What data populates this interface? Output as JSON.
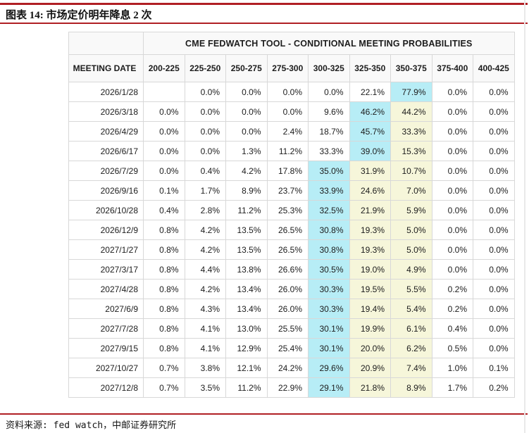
{
  "page": {
    "figure_title": "图表 14: 市场定价明年降息 2 次",
    "source_note": "资料来源: fed watch，中邮证券研究所"
  },
  "chart_data": {
    "type": "table",
    "title": "CME FEDWATCH TOOL - CONDITIONAL MEETING PROBABILITIES",
    "row_header": "MEETING DATE",
    "columns": [
      "200-225",
      "225-250",
      "250-275",
      "275-300",
      "300-325",
      "325-350",
      "350-375",
      "375-400",
      "400-425"
    ],
    "rows": [
      {
        "date": "2026/1/28",
        "values": [
          "",
          "0.0%",
          "0.0%",
          "0.0%",
          "0.0%",
          "22.1%",
          "77.9%",
          "0.0%",
          "0.0%"
        ],
        "highlights": [
          "",
          "",
          "",
          "",
          "",
          "",
          "c",
          "",
          ""
        ]
      },
      {
        "date": "2026/3/18",
        "values": [
          "0.0%",
          "0.0%",
          "0.0%",
          "0.0%",
          "9.6%",
          "46.2%",
          "44.2%",
          "0.0%",
          "0.0%"
        ],
        "highlights": [
          "",
          "",
          "",
          "",
          "",
          "c",
          "y",
          "",
          ""
        ]
      },
      {
        "date": "2026/4/29",
        "values": [
          "0.0%",
          "0.0%",
          "0.0%",
          "2.4%",
          "18.7%",
          "45.7%",
          "33.3%",
          "0.0%",
          "0.0%"
        ],
        "highlights": [
          "",
          "",
          "",
          "",
          "",
          "c",
          "y",
          "",
          ""
        ]
      },
      {
        "date": "2026/6/17",
        "values": [
          "0.0%",
          "0.0%",
          "1.3%",
          "11.2%",
          "33.3%",
          "39.0%",
          "15.3%",
          "0.0%",
          "0.0%"
        ],
        "highlights": [
          "",
          "",
          "",
          "",
          "",
          "c",
          "y",
          "",
          ""
        ]
      },
      {
        "date": "2026/7/29",
        "values": [
          "0.0%",
          "0.4%",
          "4.2%",
          "17.8%",
          "35.0%",
          "31.9%",
          "10.7%",
          "0.0%",
          "0.0%"
        ],
        "highlights": [
          "",
          "",
          "",
          "",
          "c",
          "y",
          "y",
          "",
          ""
        ]
      },
      {
        "date": "2026/9/16",
        "values": [
          "0.1%",
          "1.7%",
          "8.9%",
          "23.7%",
          "33.9%",
          "24.6%",
          "7.0%",
          "0.0%",
          "0.0%"
        ],
        "highlights": [
          "",
          "",
          "",
          "",
          "c",
          "y",
          "y",
          "",
          ""
        ]
      },
      {
        "date": "2026/10/28",
        "values": [
          "0.4%",
          "2.8%",
          "11.2%",
          "25.3%",
          "32.5%",
          "21.9%",
          "5.9%",
          "0.0%",
          "0.0%"
        ],
        "highlights": [
          "",
          "",
          "",
          "",
          "c",
          "y",
          "y",
          "",
          ""
        ]
      },
      {
        "date": "2026/12/9",
        "values": [
          "0.8%",
          "4.2%",
          "13.5%",
          "26.5%",
          "30.8%",
          "19.3%",
          "5.0%",
          "0.0%",
          "0.0%"
        ],
        "highlights": [
          "",
          "",
          "",
          "",
          "c",
          "y",
          "y",
          "",
          ""
        ]
      },
      {
        "date": "2027/1/27",
        "values": [
          "0.8%",
          "4.2%",
          "13.5%",
          "26.5%",
          "30.8%",
          "19.3%",
          "5.0%",
          "0.0%",
          "0.0%"
        ],
        "highlights": [
          "",
          "",
          "",
          "",
          "c",
          "y",
          "y",
          "",
          ""
        ]
      },
      {
        "date": "2027/3/17",
        "values": [
          "0.8%",
          "4.4%",
          "13.8%",
          "26.6%",
          "30.5%",
          "19.0%",
          "4.9%",
          "0.0%",
          "0.0%"
        ],
        "highlights": [
          "",
          "",
          "",
          "",
          "c",
          "y",
          "y",
          "",
          ""
        ]
      },
      {
        "date": "2027/4/28",
        "values": [
          "0.8%",
          "4.2%",
          "13.4%",
          "26.0%",
          "30.3%",
          "19.5%",
          "5.5%",
          "0.2%",
          "0.0%"
        ],
        "highlights": [
          "",
          "",
          "",
          "",
          "c",
          "y",
          "y",
          "",
          ""
        ]
      },
      {
        "date": "2027/6/9",
        "values": [
          "0.8%",
          "4.3%",
          "13.4%",
          "26.0%",
          "30.3%",
          "19.4%",
          "5.4%",
          "0.2%",
          "0.0%"
        ],
        "highlights": [
          "",
          "",
          "",
          "",
          "c",
          "y",
          "y",
          "",
          ""
        ]
      },
      {
        "date": "2027/7/28",
        "values": [
          "0.8%",
          "4.1%",
          "13.0%",
          "25.5%",
          "30.1%",
          "19.9%",
          "6.1%",
          "0.4%",
          "0.0%"
        ],
        "highlights": [
          "",
          "",
          "",
          "",
          "c",
          "y",
          "y",
          "",
          ""
        ]
      },
      {
        "date": "2027/9/15",
        "values": [
          "0.8%",
          "4.1%",
          "12.9%",
          "25.4%",
          "30.1%",
          "20.0%",
          "6.2%",
          "0.5%",
          "0.0%"
        ],
        "highlights": [
          "",
          "",
          "",
          "",
          "c",
          "y",
          "y",
          "",
          ""
        ]
      },
      {
        "date": "2027/10/27",
        "values": [
          "0.7%",
          "3.8%",
          "12.1%",
          "24.2%",
          "29.6%",
          "20.9%",
          "7.4%",
          "1.0%",
          "0.1%"
        ],
        "highlights": [
          "",
          "",
          "",
          "",
          "c",
          "y",
          "y",
          "",
          ""
        ]
      },
      {
        "date": "2027/12/8",
        "values": [
          "0.7%",
          "3.5%",
          "11.2%",
          "22.9%",
          "29.1%",
          "21.8%",
          "8.9%",
          "1.7%",
          "0.2%"
        ],
        "highlights": [
          "",
          "",
          "",
          "",
          "c",
          "y",
          "y",
          "",
          ""
        ]
      }
    ]
  },
  "colors": {
    "accent_red": "#b01f24",
    "highlight_cyan": "#b7edf6",
    "highlight_yellow": "#f6f6da",
    "grid_border": "#d8d8d8"
  }
}
